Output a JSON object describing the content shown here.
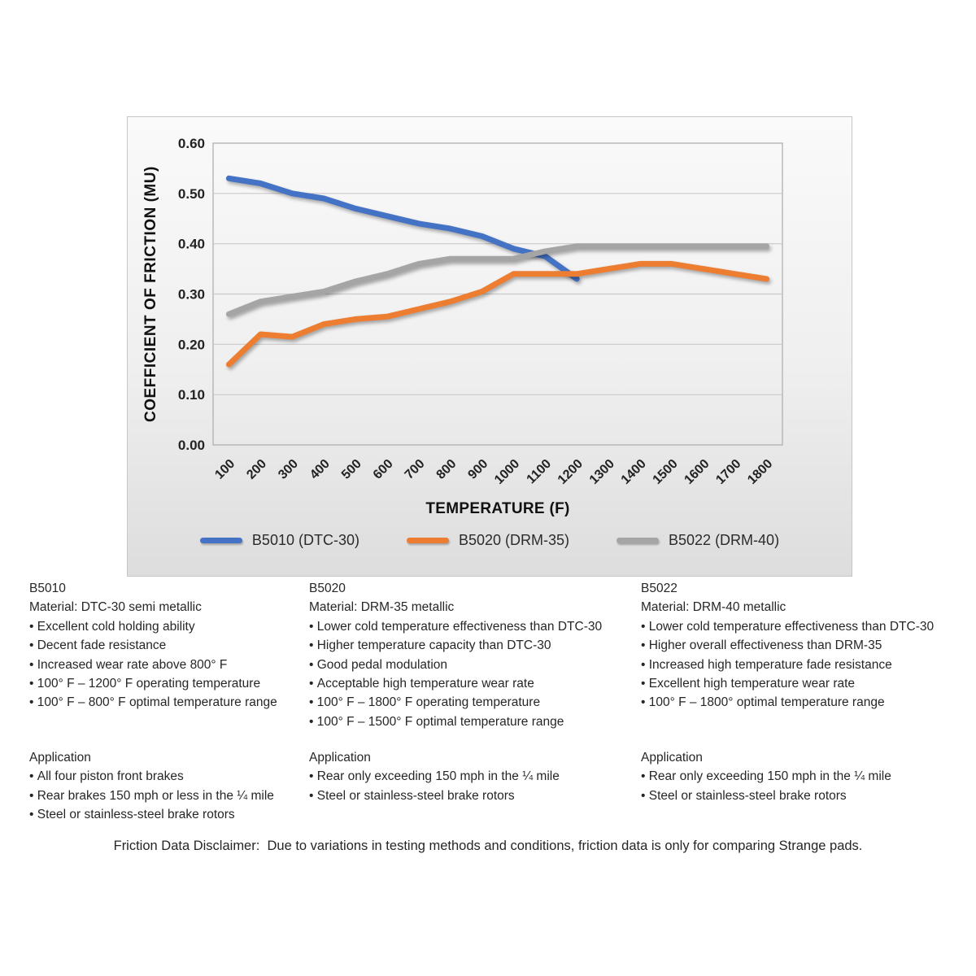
{
  "chart_data": {
    "type": "line",
    "title": "",
    "xlabel": "TEMPERATURE (F)",
    "ylabel": "COEFFICIENT OF FRICTION (MU)",
    "categories": [
      100,
      200,
      300,
      400,
      500,
      600,
      700,
      800,
      900,
      1000,
      1100,
      1200,
      1300,
      1400,
      1500,
      1600,
      1700,
      1800
    ],
    "y_ticks": [
      "0.60",
      "0.50",
      "0.40",
      "0.30",
      "0.20",
      "0.10",
      "0.00"
    ],
    "ylim": [
      0,
      0.6
    ],
    "grid": true,
    "legend_position": "bottom",
    "series": [
      {
        "name": "B5010 (DTC-30)",
        "color": "#4472C4",
        "values": [
          0.53,
          0.52,
          0.5,
          0.49,
          0.47,
          0.455,
          0.44,
          0.43,
          0.415,
          0.39,
          0.375,
          0.33
        ]
      },
      {
        "name": "B5020 (DRM-35)",
        "color": "#ED7D31",
        "values": [
          0.16,
          0.22,
          0.215,
          0.24,
          0.25,
          0.255,
          0.27,
          0.285,
          0.305,
          0.34,
          0.34,
          0.34,
          0.35,
          0.36,
          0.36,
          0.35,
          0.34,
          0.33
        ]
      },
      {
        "name": "B5022 (DRM-40)",
        "color": "#A5A5A5",
        "values": [
          0.26,
          0.285,
          0.295,
          0.305,
          0.325,
          0.34,
          0.36,
          0.37,
          0.37,
          0.37,
          0.385,
          0.395,
          0.395,
          0.395,
          0.395,
          0.395,
          0.395,
          0.395
        ]
      }
    ]
  },
  "columns": [
    {
      "id": "B5010",
      "material": "Material: DTC-30 semi metallic",
      "features": [
        "Excellent cold holding ability",
        "Decent fade resistance",
        "Increased wear rate above 800° F",
        "100° F – 1200° F operating temperature",
        "100° F – 800° F optimal temperature range"
      ],
      "application_title": "Application",
      "applications": [
        "All four piston front brakes",
        "Rear brakes 150 mph or less in the ¼ mile",
        "Steel or stainless-steel brake rotors"
      ]
    },
    {
      "id": "B5020",
      "material": "Material: DRM-35 metallic",
      "features": [
        "Lower cold temperature effectiveness than DTC-30",
        "Higher temperature capacity than DTC-30",
        "Good pedal modulation",
        "Acceptable high temperature wear rate",
        "100° F – 1800° F operating temperature",
        "100° F – 1500° F optimal temperature range"
      ],
      "application_title": "Application",
      "applications": [
        "Rear only exceeding 150 mph in the ¼ mile",
        "Steel or stainless-steel brake rotors"
      ]
    },
    {
      "id": "B5022",
      "material": "Material: DRM-40 metallic",
      "features": [
        "Lower cold temperature effectiveness than DTC-30",
        "Higher overall effectiveness than DRM-35",
        "Increased high temperature fade resistance",
        "Excellent high temperature wear rate",
        "100° F – 1800° optimal temperature range"
      ],
      "application_title": "Application",
      "applications": [
        "Rear only exceeding 150 mph in the ¼ mile",
        "Steel or stainless-steel brake rotors"
      ]
    }
  ],
  "disclaimer": "Friction Data Disclaimer:  Due to variations in testing methods and conditions, friction data is only for comparing Strange pads."
}
